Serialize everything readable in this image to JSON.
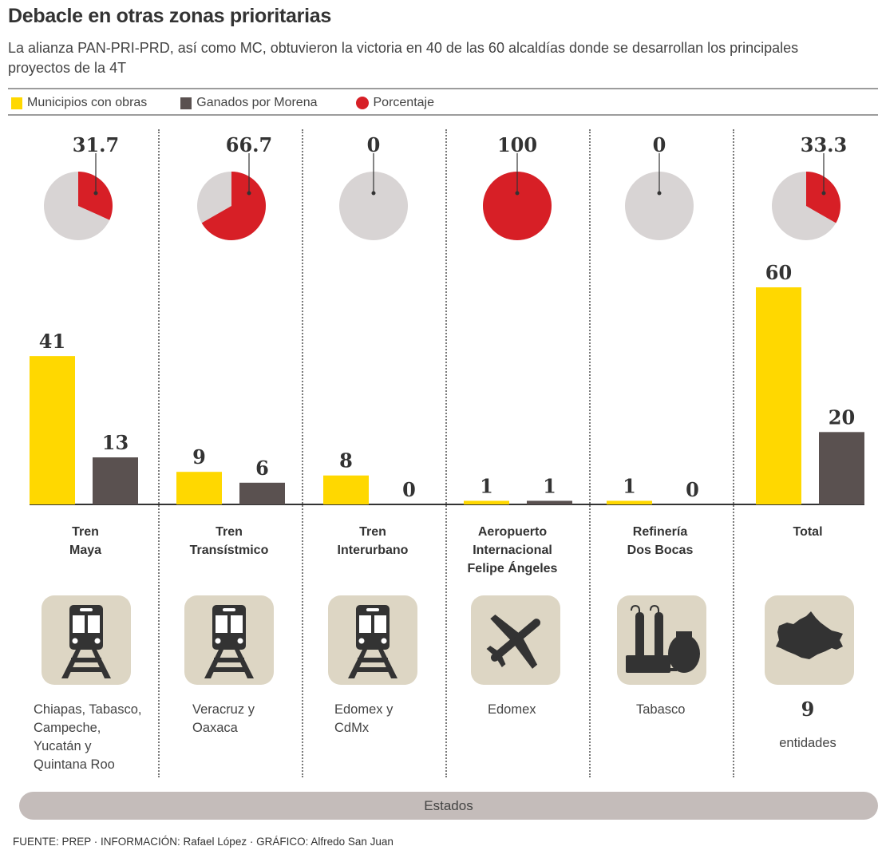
{
  "header": {
    "title": "Debacle en otras zonas prioritarias",
    "subtitle": "La alianza PAN-PRI-PRD, así como MC, obtuvieron la victoria en 40 de las 60 alcaldías donde se desarrollan los principales proyectos de la 4T"
  },
  "legend": [
    {
      "label": "Municipios con obras",
      "color": "#ffd800",
      "shape": "square"
    },
    {
      "label": "Ganados por Morena",
      "color": "#5a5150",
      "shape": "square"
    },
    {
      "label": "Porcentaje",
      "color": "#d71f26",
      "shape": "circle"
    }
  ],
  "colors": {
    "yellow": "#ffd800",
    "dark": "#5a5150",
    "red": "#d71f26",
    "pie_bg": "#d8d4d4",
    "icon_bg": "#ddd6c4",
    "icon_fg": "#333333",
    "estados_bar": "#c4bcba"
  },
  "chart_data": {
    "type": "bar",
    "title": "Debacle en otras zonas prioritarias",
    "categories": [
      "Tren Maya",
      "Tren Transístmico",
      "Tren Interurbano",
      "Aeropuerto Internacional Felipe Ángeles",
      "Refinería Dos Bocas",
      "Total"
    ],
    "category_lines": [
      [
        "Tren",
        "Maya"
      ],
      [
        "Tren",
        "Transístmico"
      ],
      [
        "Tren",
        "Interurbano"
      ],
      [
        "Aeropuerto",
        "Internacional",
        "Felipe Ángeles"
      ],
      [
        "Refinería",
        "Dos Bocas"
      ],
      [
        "Total"
      ]
    ],
    "series": [
      {
        "name": "Municipios con obras",
        "values": [
          41,
          9,
          8,
          1,
          1,
          60
        ]
      },
      {
        "name": "Ganados por Morena",
        "values": [
          13,
          6,
          0,
          1,
          0,
          20
        ]
      }
    ],
    "percentages": {
      "name": "Porcentaje",
      "values": [
        31.7,
        66.7,
        0,
        100,
        0,
        33.3
      ],
      "labels": [
        "31.7",
        "66.7",
        "0",
        "100",
        "0",
        "33.3"
      ],
      "type": "pie"
    },
    "xlabel": "",
    "ylabel": "",
    "ylim": [
      0,
      60
    ],
    "grid": false,
    "legend": "top-left"
  },
  "projects": [
    {
      "icon": "train-icon",
      "states": [
        "Chiapas, Tabasco,",
        "Campeche,",
        "Yucatán y",
        "Quintana Roo"
      ]
    },
    {
      "icon": "train-icon",
      "states": [
        "Veracruz y",
        "Oaxaca"
      ]
    },
    {
      "icon": "train-icon",
      "states": [
        "Edomex y",
        "CdMx"
      ]
    },
    {
      "icon": "airplane-icon",
      "states": [
        "Edomex"
      ]
    },
    {
      "icon": "refinery-icon",
      "states": [
        "Tabasco"
      ]
    },
    {
      "icon": "mexico-map-icon",
      "count": "9",
      "count_label": "entidades"
    }
  ],
  "estados_label": "Estados",
  "footer": "FUENTE: PREP · INFORMACIÓN: Rafael López · GRÁFICO: Alfredo San Juan"
}
